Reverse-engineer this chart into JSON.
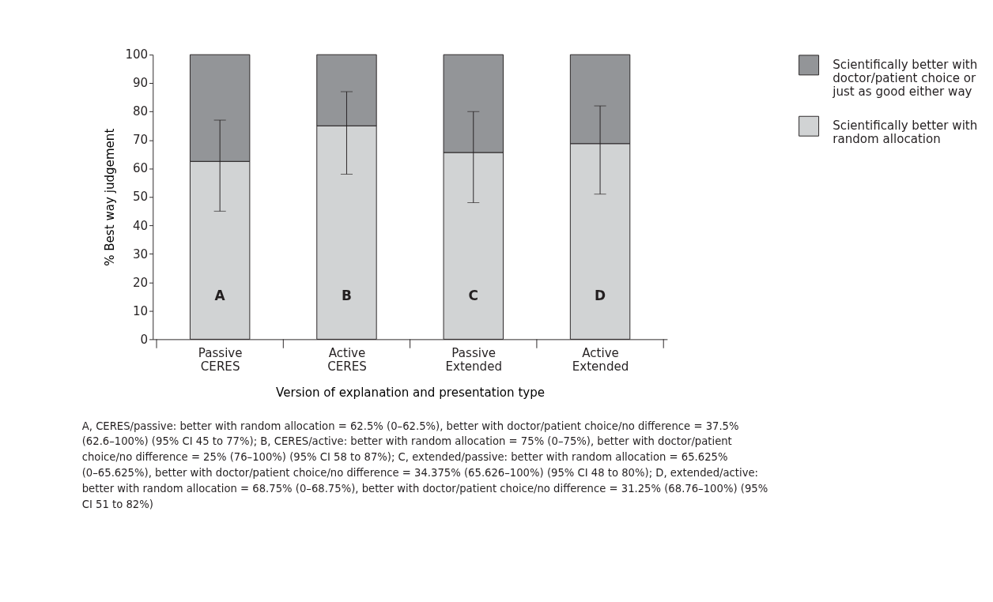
{
  "chart_data": {
    "type": "bar",
    "stacked": true,
    "xlabel": "Version of explanation and presentation type",
    "ylabel": "% Best way judgement",
    "categories": [
      "Passive CERES",
      "Active CERES",
      "Passive Extended",
      "Active Extended"
    ],
    "series": [
      {
        "name": "Scientifically better with random allocation",
        "color": "#d1d3d4",
        "values": [
          62.5,
          75,
          65.625,
          68.75
        ],
        "errors": [
          [
            45,
            77
          ],
          [
            58,
            87
          ],
          [
            48,
            80
          ],
          [
            51,
            82
          ]
        ]
      },
      {
        "name": "Scientifically better with doctor/patient choice or just as good either way",
        "color": "#939598",
        "values": [
          37.5,
          25,
          34.375,
          31.25
        ]
      }
    ],
    "ylim": [
      0,
      100
    ],
    "yticks": [
      0,
      10,
      20,
      30,
      40,
      50,
      60,
      70,
      80,
      90,
      100
    ],
    "grid": false,
    "legend": "top right",
    "annotations": [
      "A",
      "B",
      "C",
      "D",
      "A, CERES/passive: better with random allocation = 62.5% (0–62.5%), better with doctor/patient choice/no difference = 37.5% (62.6–100%) (95% CI 45 to 77%); B, CERES/active: better with random allocation = 75% (0–75%), better with doctor/patient choice/no difference = 25% (76–100%) (95% CI 58 to 87%); C, extended/passive: better with random allocation = 65.625% (0–65.625%), better with doctor/patient choice/no difference = 34.375% (65.626–100%) (95% CI 48 to 80%); D, extended/active: better with random allocation = 68.75% (0–68.75%), better with doctor/patient choice/no difference = 31.25% (68.76–100%) (95% CI 51 to 82%)"
    ]
  }
}
